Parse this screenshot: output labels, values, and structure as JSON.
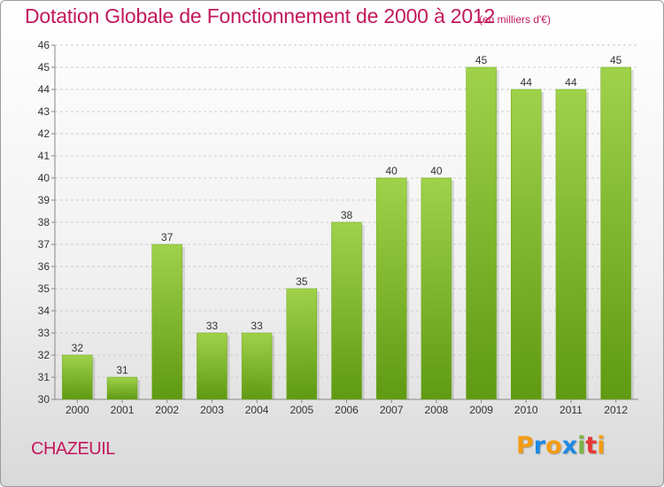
{
  "header": {
    "title": "Dotation Globale de Fonctionnement de 2000 à 2012",
    "subtitle": "(en milliers d'€)"
  },
  "footer": {
    "commune": "CHAZEUIL",
    "brand": [
      "P",
      "r",
      "o",
      "x",
      "i",
      "t",
      "i"
    ]
  },
  "colors": {
    "title": "#c2185b",
    "bar_top": "#9fd24a",
    "bar_bottom": "#5f9a12",
    "grid": "#cccccc",
    "brand_letters": [
      "#f39c12",
      "#1e88e5",
      "#f39c12",
      "#1e88e5",
      "#7cb342",
      "#e53935",
      "#f39c12"
    ]
  },
  "chart_data": {
    "type": "bar",
    "title": "Dotation Globale de Fonctionnement de 2000 à 2012",
    "subtitle": "(en milliers d'€)",
    "categories": [
      "2000",
      "2001",
      "2002",
      "2003",
      "2004",
      "2005",
      "2006",
      "2007",
      "2008",
      "2009",
      "2010",
      "2011",
      "2012"
    ],
    "values": [
      32,
      31,
      37,
      33,
      33,
      35,
      38,
      40,
      40,
      45,
      44,
      44,
      45
    ],
    "ylim": [
      30,
      46
    ],
    "yticks": [
      30,
      31,
      32,
      33,
      34,
      35,
      36,
      37,
      38,
      39,
      40,
      41,
      42,
      43,
      44,
      45,
      46
    ],
    "grid": true,
    "data_labels": true
  }
}
